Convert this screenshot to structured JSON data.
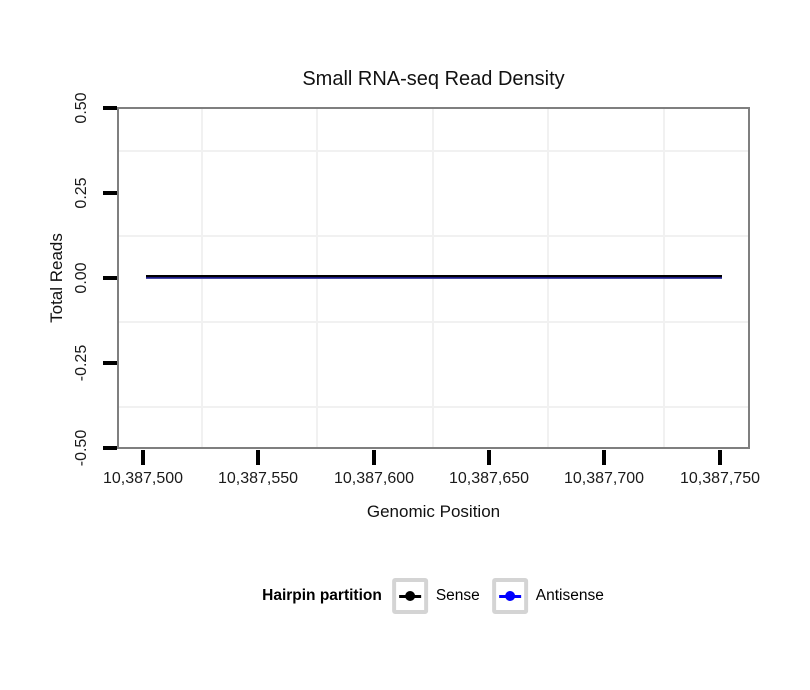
{
  "chart_data": {
    "type": "line",
    "title": "Small RNA-seq Read Density",
    "xlabel": "Genomic Position",
    "ylabel": "Total Reads",
    "xlim": [
      10387489,
      10387762
    ],
    "ylim": [
      -0.5,
      0.5
    ],
    "x_ticks": [
      10387500,
      10387550,
      10387600,
      10387650,
      10387700,
      10387750
    ],
    "x_tick_labels": [
      "10,387,500",
      "10,387,550",
      "10,387,600",
      "10,387,650",
      "10,387,700",
      "10,387,750"
    ],
    "y_ticks": [
      0.5,
      0.25,
      0.0,
      -0.25,
      -0.5
    ],
    "y_tick_labels": [
      "0.50",
      "0.25",
      "0.00",
      "-0.25",
      "-0.50"
    ],
    "grid": "minor gridlines only, light gray on white panel",
    "series": [
      {
        "name": "Sense",
        "color": "#000000",
        "x": [
          10387500,
          10387750
        ],
        "y": [
          0,
          0
        ]
      },
      {
        "name": "Antisense",
        "color": "#0000FF",
        "x": [
          10387500,
          10387750
        ],
        "y": [
          0,
          0
        ]
      }
    ],
    "legend": {
      "title": "Hairpin partition",
      "position": "bottom",
      "entries": [
        {
          "label": "Sense",
          "color": "#000000"
        },
        {
          "label": "Antisense",
          "color": "#0000FF"
        }
      ]
    }
  },
  "colors": {
    "panel_border": "#7f7f7f",
    "grid_minor": "#f1f1f1",
    "axis_tick": "#000000",
    "legend_key_border": "#d4d4d4",
    "sense": "#000000",
    "antisense": "#0000FF"
  }
}
